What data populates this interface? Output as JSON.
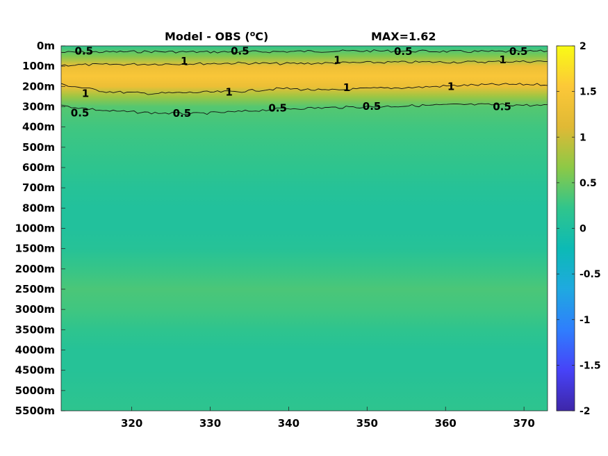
{
  "chart_data": {
    "type": "heatmap",
    "title_left": "Model - OBS (",
    "title_unit_sup": "o",
    "title_unit_rest": "C)",
    "title_right": "MAX=1.62",
    "x_ticks": [
      320,
      330,
      340,
      350,
      360,
      370
    ],
    "xlim": [
      311,
      373
    ],
    "y_ticks": [
      "0m",
      "100m",
      "200m",
      "300m",
      "400m",
      "500m",
      "600m",
      "700m",
      "800m",
      "1000m",
      "1500m",
      "2000m",
      "2500m",
      "3000m",
      "3500m",
      "4000m",
      "4500m",
      "5000m",
      "5500m"
    ],
    "colorbar": {
      "ticks": [
        "2",
        "1.5",
        "1",
        "0.5",
        "0",
        "-0.5",
        "-1",
        "-1.5",
        "-2"
      ],
      "range": [
        -2,
        2
      ],
      "colormap": [
        "#3e26a8",
        "#4743f8",
        "#2f7efd",
        "#1fa9e0",
        "#0cbab5",
        "#30c58c",
        "#8dc946",
        "#e0b935",
        "#fcc838",
        "#f9fb15"
      ]
    },
    "depth_profile": [
      {
        "level": 0.0,
        "value": 0.2
      },
      {
        "level": 0.5,
        "value": 0.6
      },
      {
        "level": 1.0,
        "value": 1.3
      },
      {
        "level": 1.5,
        "value": 1.5
      },
      {
        "level": 2.0,
        "value": 1.3
      },
      {
        "level": 2.5,
        "value": 0.75
      },
      {
        "level": 3.0,
        "value": 0.4
      },
      {
        "level": 4.0,
        "value": 0.3
      },
      {
        "level": 5.0,
        "value": 0.25
      },
      {
        "level": 6.0,
        "value": 0.2
      },
      {
        "level": 7.0,
        "value": 0.1
      },
      {
        "level": 8.0,
        "value": 0.05
      },
      {
        "level": 9.0,
        "value": 0.05
      },
      {
        "level": 10.0,
        "value": 0.1
      },
      {
        "level": 11.0,
        "value": 0.25
      },
      {
        "level": 12.0,
        "value": 0.35
      },
      {
        "level": 13.0,
        "value": 0.3
      },
      {
        "level": 14.0,
        "value": 0.2
      },
      {
        "level": 15.0,
        "value": 0.1
      },
      {
        "level": 16.0,
        "value": 0.1
      },
      {
        "level": 17.0,
        "value": 0.15
      },
      {
        "level": 18.0,
        "value": 0.2
      }
    ],
    "contour_labels": [
      {
        "text": "0.5",
        "x": 313.9,
        "level": 0.25
      },
      {
        "text": "1",
        "x": 326.7,
        "level": 0.75
      },
      {
        "text": "0.5",
        "x": 333.8,
        "level": 0.25
      },
      {
        "text": "1",
        "x": 346.2,
        "level": 0.7
      },
      {
        "text": "0.5",
        "x": 354.6,
        "level": 0.28
      },
      {
        "text": "1",
        "x": 367.3,
        "level": 0.68
      },
      {
        "text": "0.5",
        "x": 369.3,
        "level": 0.28
      },
      {
        "text": "1",
        "x": 314.1,
        "level": 2.35
      },
      {
        "text": "1",
        "x": 332.4,
        "level": 2.28
      },
      {
        "text": "1",
        "x": 347.4,
        "level": 2.05
      },
      {
        "text": "1",
        "x": 360.7,
        "level": 2.0
      },
      {
        "text": "0.5",
        "x": 313.4,
        "level": 3.3
      },
      {
        "text": "0.5",
        "x": 326.4,
        "level": 3.33
      },
      {
        "text": "0.5",
        "x": 338.6,
        "level": 3.07
      },
      {
        "text": "0.5",
        "x": 350.6,
        "level": 2.98
      },
      {
        "text": "0.5",
        "x": 367.2,
        "level": 3.0
      }
    ],
    "contour_lines": [
      {
        "value": 0.5,
        "levels": [
          0.32,
          0.3,
          0.28,
          0.3,
          0.3,
          0.28,
          0.26,
          0.25,
          0.26,
          0.28,
          0.28,
          0.26
        ]
      },
      {
        "value": 1,
        "levels": [
          0.95,
          0.92,
          0.9,
          0.88,
          0.85,
          0.88,
          0.85,
          0.82,
          0.8,
          0.8,
          0.78,
          0.76
        ]
      },
      {
        "value": 1,
        "levels": [
          1.9,
          2.25,
          2.35,
          2.3,
          2.25,
          2.1,
          2.2,
          2.1,
          2.05,
          1.95,
          1.9,
          1.9
        ]
      },
      {
        "value": 0.5,
        "levels": [
          2.95,
          3.2,
          3.3,
          3.35,
          3.25,
          3.1,
          3.05,
          3.0,
          2.95,
          2.9,
          2.9,
          2.95
        ]
      }
    ]
  }
}
